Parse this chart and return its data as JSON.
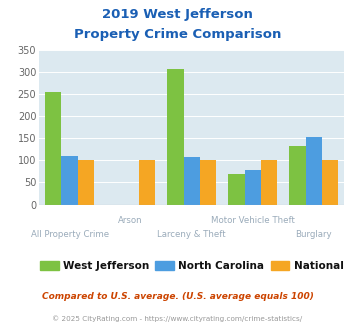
{
  "title_line1": "2019 West Jefferson",
  "title_line2": "Property Crime Comparison",
  "categories": [
    "All Property Crime",
    "Arson",
    "Larceny & Theft",
    "Motor Vehicle Theft",
    "Burglary"
  ],
  "series": {
    "West Jefferson": [
      255,
      0,
      307,
      70,
      133
    ],
    "North Carolina": [
      110,
      0,
      107,
      78,
      152
    ],
    "National": [
      100,
      100,
      100,
      100,
      100
    ]
  },
  "colors": {
    "West Jefferson": "#7dc242",
    "North Carolina": "#4d9de0",
    "National": "#f5a623"
  },
  "ylim": [
    0,
    350
  ],
  "yticks": [
    0,
    50,
    100,
    150,
    200,
    250,
    300,
    350
  ],
  "bg_color": "#dce9f0",
  "title_color": "#1a5fb4",
  "xlabel_color": "#9aabba",
  "legend_label_color": "#111111",
  "footnote1": "Compared to U.S. average. (U.S. average equals 100)",
  "footnote2": "© 2025 CityRating.com - https://www.cityrating.com/crime-statistics/",
  "footnote1_color": "#cc4400",
  "footnote2_color": "#999999"
}
